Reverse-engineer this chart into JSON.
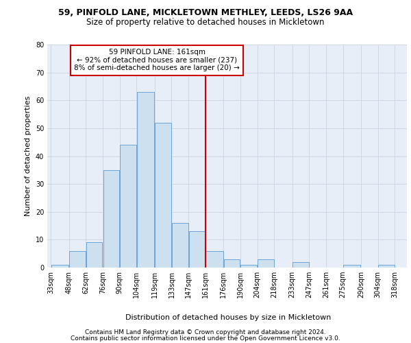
{
  "title1": "59, PINFOLD LANE, MICKLETOWN METHLEY, LEEDS, LS26 9AA",
  "title2": "Size of property relative to detached houses in Mickletown",
  "xlabel": "Distribution of detached houses by size in Mickletown",
  "ylabel": "Number of detached properties",
  "bins": [
    "33sqm",
    "48sqm",
    "62sqm",
    "76sqm",
    "90sqm",
    "104sqm",
    "119sqm",
    "133sqm",
    "147sqm",
    "161sqm",
    "176sqm",
    "190sqm",
    "204sqm",
    "218sqm",
    "233sqm",
    "247sqm",
    "261sqm",
    "275sqm",
    "290sqm",
    "304sqm",
    "318sqm"
  ],
  "bin_edges": [
    33,
    48,
    62,
    76,
    90,
    104,
    119,
    133,
    147,
    161,
    176,
    190,
    204,
    218,
    233,
    247,
    261,
    275,
    290,
    304,
    318
  ],
  "counts": [
    1,
    6,
    9,
    35,
    44,
    63,
    52,
    16,
    13,
    6,
    3,
    1,
    3,
    0,
    2,
    0,
    0,
    1,
    0,
    1
  ],
  "bar_color": "#cce0f0",
  "bar_edge_color": "#5b9bd5",
  "vline_x": 161,
  "vline_color": "#cc0000",
  "annotation_text": "59 PINFOLD LANE: 161sqm\n← 92% of detached houses are smaller (237)\n8% of semi-detached houses are larger (20) →",
  "annotation_box_color": "#ffffff",
  "annotation_box_edge": "#cc0000",
  "grid_color": "#d0d8e8",
  "background_color": "#e8eef8",
  "ylim": [
    0,
    80
  ],
  "yticks": [
    0,
    10,
    20,
    30,
    40,
    50,
    60,
    70,
    80
  ],
  "footer1": "Contains HM Land Registry data © Crown copyright and database right 2024.",
  "footer2": "Contains public sector information licensed under the Open Government Licence v3.0.",
  "title1_fontsize": 9,
  "title2_fontsize": 8.5,
  "xlabel_fontsize": 8,
  "ylabel_fontsize": 8,
  "tick_fontsize": 7,
  "annotation_fontsize": 7.5,
  "footer_fontsize": 6.5
}
